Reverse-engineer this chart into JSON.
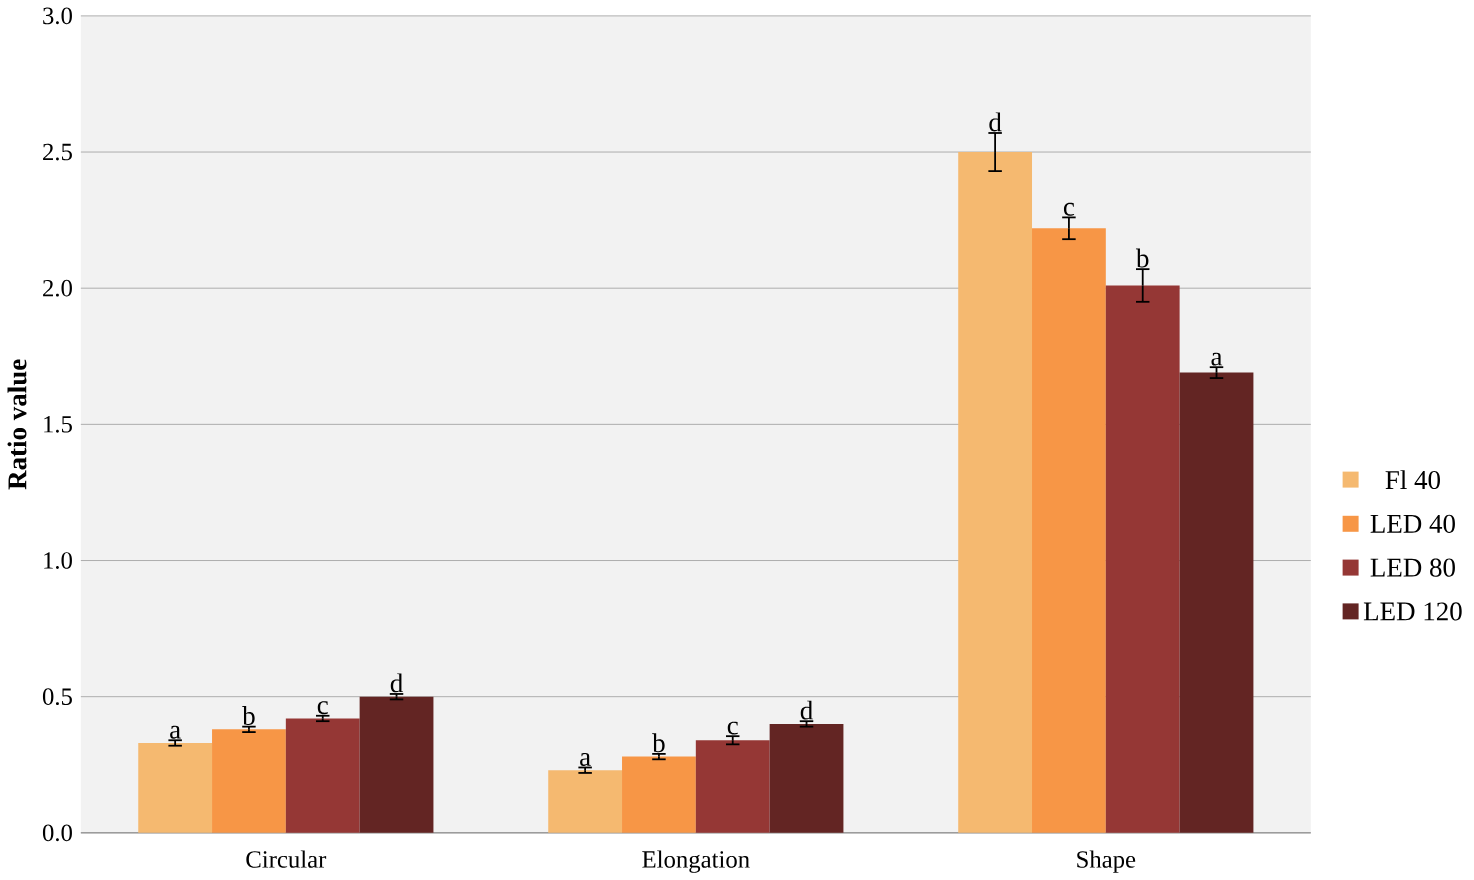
{
  "chart_data": {
    "type": "bar",
    "ylabel": "Ratio value",
    "categories": [
      "Circular",
      "Elongation",
      "Shape"
    ],
    "series": [
      {
        "name": "Fl 40",
        "color": "#f5b970",
        "values": [
          0.33,
          0.23,
          2.5
        ],
        "errors": [
          0.01,
          0.01,
          0.07
        ]
      },
      {
        "name": "LED 40",
        "color": "#f79646",
        "values": [
          0.38,
          0.28,
          2.22
        ],
        "errors": [
          0.01,
          0.01,
          0.04
        ]
      },
      {
        "name": "LED 80",
        "color": "#953735",
        "values": [
          0.42,
          0.34,
          2.01
        ],
        "errors": [
          0.01,
          0.015,
          0.06
        ]
      },
      {
        "name": "LED 120",
        "color": "#632523",
        "values": [
          0.5,
          0.4,
          1.69
        ],
        "errors": [
          0.01,
          0.01,
          0.02
        ]
      }
    ],
    "ylim": [
      0,
      3
    ],
    "yticks": [
      {
        "value": 0,
        "label": "0.0"
      },
      {
        "value": 0.5,
        "label": "0.5"
      },
      {
        "value": 1,
        "label": "1.0"
      },
      {
        "value": 1.5,
        "label": "1.5"
      },
      {
        "value": 2,
        "label": "2.0"
      },
      {
        "value": 2.5,
        "label": "2.5"
      },
      {
        "value": 3,
        "label": "3.0"
      }
    ],
    "grid": "y",
    "legend": "right",
    "annotations": [
      "a",
      "b",
      "c",
      "d",
      "a",
      "b",
      "c",
      "d",
      "d",
      "c",
      "b",
      "a"
    ]
  }
}
